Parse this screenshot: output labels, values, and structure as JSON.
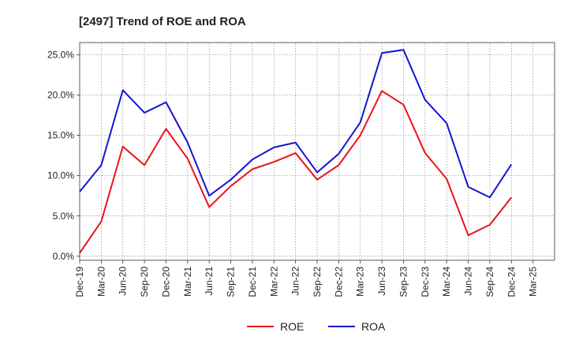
{
  "chart_data": {
    "type": "line",
    "title": "[2497]  Trend of ROE and ROA",
    "xlabel": "",
    "ylabel": "",
    "categories": [
      "Dec-19",
      "Mar-20",
      "Jun-20",
      "Sep-20",
      "Dec-20",
      "Mar-21",
      "Jun-21",
      "Sep-21",
      "Dec-21",
      "Mar-22",
      "Jun-22",
      "Sep-22",
      "Dec-22",
      "Mar-23",
      "Jun-23",
      "Sep-23",
      "Dec-23",
      "Mar-24",
      "Jun-24",
      "Sep-24",
      "Dec-24",
      "Mar-25"
    ],
    "xtick_labels": [
      "Dec-19",
      "Mar-20",
      "Jun-20",
      "Sep-20",
      "Dec-20",
      "Mar-21",
      "Jun-21",
      "Sep-21",
      "Dec-21",
      "Mar-22",
      "Jun-22",
      "Sep-22",
      "Dec-22",
      "Mar-23",
      "Jun-23",
      "Sep-23",
      "Dec-23",
      "Mar-24",
      "Jun-24",
      "Sep-24",
      "Dec-24",
      "Mar-25"
    ],
    "ytick_values": [
      0,
      5,
      10,
      15,
      20,
      25
    ],
    "ytick_labels": [
      "0.0%",
      "5.0%",
      "10.0%",
      "15.0%",
      "20.0%",
      "25.0%"
    ],
    "ylim": [
      -0.5,
      26.5
    ],
    "grid": true,
    "legend_position": "bottom-center",
    "series": [
      {
        "name": "ROE",
        "color": "#e8141a",
        "x": [
          "Dec-19",
          "Mar-20",
          "Jun-20",
          "Sep-20",
          "Dec-20",
          "Mar-21",
          "Jun-21",
          "Sep-21",
          "Dec-21",
          "Mar-22",
          "Jun-22",
          "Sep-22",
          "Dec-22",
          "Mar-23",
          "Jun-23",
          "Sep-23",
          "Dec-23",
          "Mar-24",
          "Jun-24",
          "Sep-24",
          "Dec-24"
        ],
        "values": [
          0.4,
          4.3,
          13.6,
          11.3,
          15.8,
          12.1,
          6.1,
          8.7,
          10.8,
          11.7,
          12.8,
          9.5,
          11.3,
          15.0,
          20.5,
          18.8,
          12.8,
          9.6,
          2.6,
          3.9,
          7.3
        ]
      },
      {
        "name": "ROA",
        "color": "#1414d2",
        "x": [
          "Dec-19",
          "Mar-20",
          "Jun-20",
          "Sep-20",
          "Dec-20",
          "Mar-21",
          "Jun-21",
          "Sep-21",
          "Dec-21",
          "Mar-22",
          "Jun-22",
          "Sep-22",
          "Dec-22",
          "Mar-23",
          "Jun-23",
          "Sep-23",
          "Dec-23",
          "Mar-24",
          "Jun-24",
          "Sep-24",
          "Dec-24"
        ],
        "values": [
          8.0,
          11.3,
          20.6,
          17.8,
          19.1,
          14.1,
          7.5,
          9.5,
          12.0,
          13.5,
          14.1,
          10.4,
          12.7,
          16.6,
          25.2,
          25.6,
          19.4,
          16.5,
          8.6,
          7.3,
          11.4
        ]
      }
    ]
  }
}
